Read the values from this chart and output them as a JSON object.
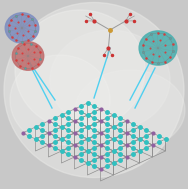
{
  "bg_color": "#c8c8c8",
  "fig_width": 1.88,
  "fig_height": 1.89,
  "grid_line_color": "#909090",
  "teal_node_color": "#30c0c0",
  "purple_node_color": "#9060a0",
  "arrow_color": "#50d0f0",
  "cluster_blue_color": "#8090c0",
  "cluster_red_color": "#c07070",
  "cluster_teal_color": "#50b0b0",
  "red_dot_color": "#dd3333",
  "white_blob_color": "#e8e8e8",
  "ligand_stick_color": "#999999"
}
